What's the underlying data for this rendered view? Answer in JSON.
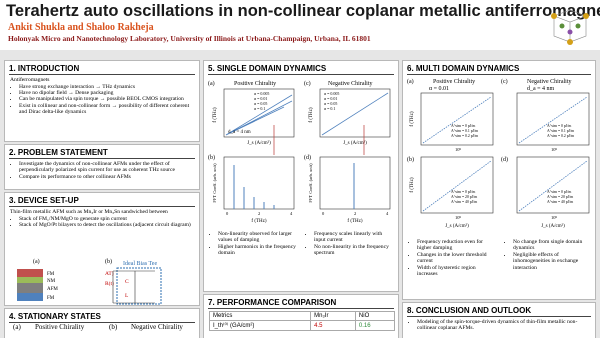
{
  "header": {
    "title": "Terahertz auto oscillations in non-collinear coplanar metallic antiferromagnets",
    "authors": "Ankit Shukla and Shaloo Rakheja",
    "affiliation": "Holonyak Micro and Nanotechnology Laboratory, University of Illinois at Urbana-Champaign, Urbana, IL 61801"
  },
  "introduction": {
    "heading": "1. INTRODUCTION",
    "lead": "Antiferromagnets",
    "bullets": [
      "Have strong exchange interaction → THz dynamics",
      "Have no dipolar field → Dense packaging",
      "Can be manipulated via spin torque → possible BEOL CMOS integration",
      "Exist in collinear and non-collinear form → possibility of different coherent and Dirac delta-like dynamics"
    ]
  },
  "problem": {
    "heading": "2. PROBLEM STATEMENT",
    "bullets": [
      "Investigate the dynamics of non-collinear AFMs under the effect of perpendicularly polarized spin current for use as coherent THz source",
      "Compare its performance to other collinear AFMs"
    ]
  },
  "device": {
    "heading": "3. DEVICE SET-UP",
    "lead": "Thin-film metallic AFM such as Mn₃Ir or Mn₃Sn sandwiched between",
    "bullets": [
      "Stack of FM₁/NM/MgO to generate spin current",
      "Stack of MgO/Pt bilayers to detect the oscillations (adjacent circuit diagram)"
    ],
    "panel_a": "(a)",
    "panel_b": "(b)",
    "bias_tee": "Ideal Bias Tee",
    "circuit_labels": [
      "AT)",
      "R(t)",
      "C",
      "L"
    ],
    "layers": [
      "FM",
      "NM",
      "AFM",
      "FM"
    ]
  },
  "stationary": {
    "heading": "4. STATIONARY STATES",
    "panels": [
      {
        "label": "(a)",
        "title": "Positive Chirality"
      },
      {
        "label": "(b)",
        "title": "Negative Chirality"
      }
    ]
  },
  "single_domain": {
    "heading": "5. SINGLE DOMAIN DYNAMICS",
    "panels": [
      {
        "label": "(a)",
        "title": "Positive Chirality",
        "ylabel": "f (THz)",
        "xlabel": "J_s (A/cm²)",
        "note": "d_a = 4 nm",
        "legend": [
          "α = 0.005",
          "α = 0.01",
          "α = 0.05",
          "α = 0.1"
        ]
      },
      {
        "label": "(c)",
        "title": "Negative Chirality",
        "ylabel": "f (THz)",
        "xlabel": "J_s (A/cm²)",
        "legend": [
          "α = 0.005",
          "α = 0.01",
          "α = 0.05",
          "α = 0.1"
        ]
      },
      {
        "label": "(b)",
        "ylabel": "FFT Coeff. (arb. unit)",
        "xlabel": "f (THz)",
        "xticks": [
          "0",
          "2",
          "4"
        ]
      },
      {
        "label": "(d)",
        "ylabel": "FFT Coeff. (arb. unit)",
        "xlabel": "f (THz)",
        "xticks": [
          "0",
          "2",
          "4"
        ]
      }
    ],
    "bullets_left": [
      "Non-linearity observed for larger values of damping",
      "Higher harmonics in the frequency domain"
    ],
    "bullets_right": [
      "Frequency scales linearly with input current",
      "No non-linearity in the frequency spectrum"
    ]
  },
  "multi_domain": {
    "heading": "6. MULTI DOMAIN DYNAMICS",
    "panels": [
      {
        "label": "(a)",
        "title": "Positive Chirality",
        "note": "α = 0.01",
        "ylabel": "f (THz)",
        "xtick": "10⁹",
        "legend": [
          "A^sim = 0 pJ/m",
          "A^sim = 0.1 pJ/m",
          "A^sim = 0.2 pJ/m"
        ]
      },
      {
        "label": "(c)",
        "title": "Negative Chirality",
        "note": "d_a = 4 nm",
        "xtick": "10⁹",
        "legend": [
          "A^sim = 0 pJ/m",
          "A^sim = 0.1 pJ/m",
          "A^sim = 0.2 pJ/m"
        ]
      },
      {
        "label": "(b)",
        "ylabel": "f (THz)",
        "xlabel": "J_s (A/cm²)",
        "xtick": "10⁹",
        "legend": [
          "A^sim = 0 pJ/m",
          "A^sim = 20 pJ/m",
          "A^sim = 40 pJ/m"
        ]
      },
      {
        "label": "(d)",
        "xlabel": "J_s (A/cm²)",
        "xtick": "10⁹",
        "legend": [
          "A^sim = 0 pJ/m",
          "A^sim = 20 pJ/m",
          "A^sim = 40 pJ/m"
        ]
      }
    ],
    "bullets_left": [
      "Frequency reduction even for higher damping",
      "Changes in the lower threshold current",
      "Width of hysteretic region increases"
    ],
    "bullets_right": [
      "No change from single domain dynamics",
      "Negligible effects of inhomogeneities in exchange interaction"
    ]
  },
  "performance": {
    "heading": "7. PERFORMANCE COMPARISON",
    "table": {
      "header": [
        "Metrics",
        "Mn₃Ir",
        "NiO"
      ],
      "rows": [
        [
          "I_th⁽⁰⁾ (GA/cm²)",
          "4.5",
          "0.16"
        ]
      ]
    }
  },
  "conclusion": {
    "heading": "8. CONCLUSION AND OUTLOOK",
    "bullets": [
      "Modeling of the spin-torque-driven dynamics of thin-film metallic non-collinear coplanar AFMs."
    ]
  }
}
